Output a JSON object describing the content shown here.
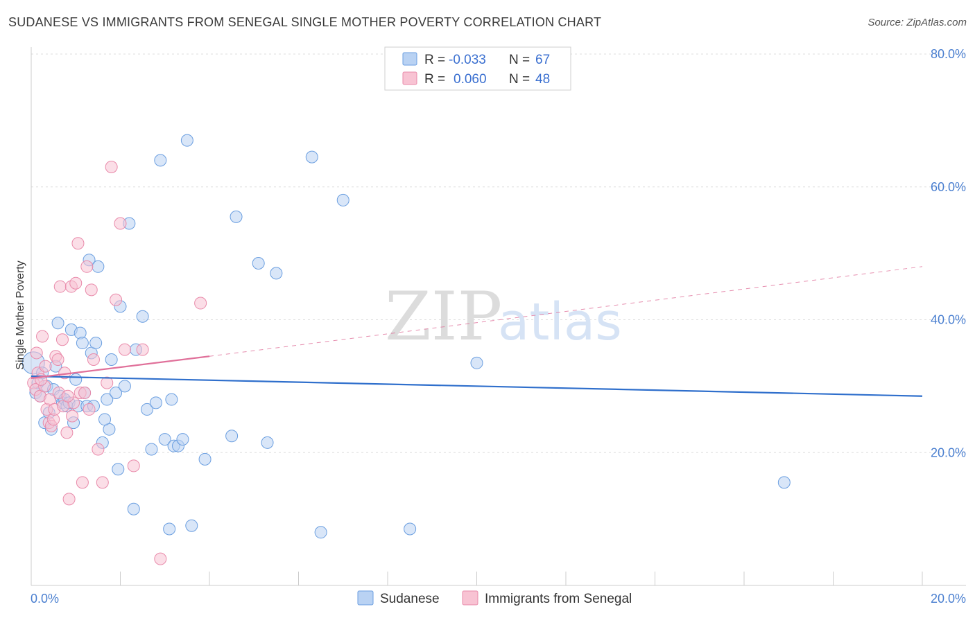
{
  "title": "SUDANESE VS IMMIGRANTS FROM SENEGAL SINGLE MOTHER POVERTY CORRELATION CHART",
  "source": "Source: ZipAtlas.com",
  "watermark": {
    "zip": "ZIP",
    "atlas": "atlas"
  },
  "colors": {
    "sudanese_fill": "#b9d2f3",
    "sudanese_stroke": "#6a9ee0",
    "sudanese_line": "#2f6fcc",
    "senegal_fill": "#f8c3d3",
    "senegal_stroke": "#e98aaa",
    "senegal_line": "#e0709a",
    "tick_label": "#4a7fd0",
    "grid": "#dddddd"
  },
  "legend": {
    "rows": [
      {
        "r_label": "R =",
        "r_value": "-0.033",
        "n_label": "N =",
        "n_value": "67"
      },
      {
        "r_label": "R =",
        "r_value": "0.060",
        "n_label": "N =",
        "n_value": "48"
      }
    ]
  },
  "bottom_legend": [
    "Sudanese",
    "Immigrants from Senegal"
  ],
  "chart_data": {
    "type": "scatter",
    "title": "SUDANESE VS IMMIGRANTS FROM SENEGAL SINGLE MOTHER POVERTY CORRELATION CHART",
    "xlabel": "",
    "ylabel": "Single Mother Poverty",
    "xlim": [
      0,
      20
    ],
    "ylim": [
      0,
      80
    ],
    "x_tick_labels": [
      "0.0%",
      "20.0%"
    ],
    "y_ticks": [
      20,
      40,
      60,
      80
    ],
    "y_tick_labels": [
      "20.0%",
      "40.0%",
      "60.0%",
      "80.0%"
    ],
    "grid": true,
    "legend_position": "top-center",
    "series": [
      {
        "name": "Sudanese",
        "trend": {
          "x": [
            0,
            20
          ],
          "y": [
            31.5,
            28.5
          ],
          "style": "solid"
        },
        "points": [
          [
            0.05,
            33.5
          ],
          [
            0.1,
            29
          ],
          [
            0.2,
            28.5
          ],
          [
            0.25,
            32
          ],
          [
            0.3,
            24.5
          ],
          [
            0.35,
            30
          ],
          [
            0.4,
            26
          ],
          [
            0.45,
            23.5
          ],
          [
            0.5,
            29.5
          ],
          [
            0.55,
            33
          ],
          [
            0.6,
            39.5
          ],
          [
            0.65,
            28.5
          ],
          [
            0.7,
            27.5
          ],
          [
            0.75,
            28
          ],
          [
            0.8,
            27
          ],
          [
            0.85,
            27.5
          ],
          [
            0.9,
            38.5
          ],
          [
            0.95,
            24.5
          ],
          [
            1.0,
            31
          ],
          [
            1.05,
            27
          ],
          [
            1.1,
            38
          ],
          [
            1.15,
            36.5
          ],
          [
            1.2,
            29
          ],
          [
            1.25,
            27
          ],
          [
            1.3,
            49
          ],
          [
            1.35,
            35
          ],
          [
            1.4,
            27
          ],
          [
            1.5,
            48
          ],
          [
            1.6,
            21.5
          ],
          [
            1.7,
            28
          ],
          [
            1.75,
            23.5
          ],
          [
            1.8,
            34
          ],
          [
            1.9,
            29
          ],
          [
            1.95,
            17.5
          ],
          [
            2.0,
            42
          ],
          [
            2.1,
            30
          ],
          [
            2.2,
            54.5
          ],
          [
            2.3,
            11.5
          ],
          [
            2.5,
            40.5
          ],
          [
            2.6,
            26.5
          ],
          [
            2.7,
            20.5
          ],
          [
            2.8,
            27.5
          ],
          [
            2.9,
            64
          ],
          [
            3.0,
            22
          ],
          [
            3.1,
            8.5
          ],
          [
            3.2,
            21
          ],
          [
            3.3,
            21
          ],
          [
            3.4,
            22
          ],
          [
            3.5,
            67
          ],
          [
            3.6,
            9
          ],
          [
            3.9,
            19
          ],
          [
            4.5,
            22.5
          ],
          [
            4.6,
            55.5
          ],
          [
            5.1,
            48.5
          ],
          [
            5.3,
            21.5
          ],
          [
            5.5,
            47
          ],
          [
            6.3,
            64.5
          ],
          [
            6.5,
            8
          ],
          [
            7.0,
            58
          ],
          [
            8.5,
            8.5
          ],
          [
            10.0,
            33.5
          ],
          [
            16.9,
            15.5
          ],
          [
            1.45,
            36.5
          ],
          [
            0.15,
            30.5
          ],
          [
            2.35,
            35.5
          ],
          [
            1.65,
            25
          ],
          [
            3.15,
            28
          ]
        ]
      },
      {
        "name": "Immigrants from Senegal",
        "trend": {
          "x": [
            0,
            4
          ],
          "y": [
            31.2,
            34.5
          ],
          "style": "solid",
          "extended_to": [
            20,
            48
          ],
          "extended_style": "dashed"
        },
        "points": [
          [
            0.05,
            30.5
          ],
          [
            0.1,
            29.5
          ],
          [
            0.15,
            32
          ],
          [
            0.2,
            28.5
          ],
          [
            0.25,
            37.5
          ],
          [
            0.3,
            30
          ],
          [
            0.35,
            26.5
          ],
          [
            0.4,
            24.5
          ],
          [
            0.45,
            24
          ],
          [
            0.5,
            25
          ],
          [
            0.55,
            34.5
          ],
          [
            0.6,
            34
          ],
          [
            0.65,
            45
          ],
          [
            0.7,
            37
          ],
          [
            0.75,
            32
          ],
          [
            0.8,
            23
          ],
          [
            0.85,
            13
          ],
          [
            0.9,
            45
          ],
          [
            0.95,
            27.5
          ],
          [
            1.0,
            45.5
          ],
          [
            1.05,
            51.5
          ],
          [
            1.1,
            29
          ],
          [
            1.15,
            15.5
          ],
          [
            1.2,
            29
          ],
          [
            1.25,
            48
          ],
          [
            1.3,
            26.5
          ],
          [
            1.35,
            44.5
          ],
          [
            1.4,
            34
          ],
          [
            1.5,
            20.5
          ],
          [
            1.6,
            15.5
          ],
          [
            1.7,
            30.5
          ],
          [
            1.8,
            63
          ],
          [
            1.9,
            43
          ],
          [
            2.0,
            54.5
          ],
          [
            2.1,
            35.5
          ],
          [
            2.3,
            18
          ],
          [
            2.5,
            35.5
          ],
          [
            2.9,
            4
          ],
          [
            3.8,
            42.5
          ],
          [
            0.12,
            35
          ],
          [
            0.22,
            31
          ],
          [
            0.32,
            33
          ],
          [
            0.42,
            28
          ],
          [
            0.52,
            26.5
          ],
          [
            0.62,
            29
          ],
          [
            0.72,
            27
          ],
          [
            0.82,
            28.5
          ],
          [
            0.92,
            25.5
          ]
        ]
      }
    ]
  }
}
